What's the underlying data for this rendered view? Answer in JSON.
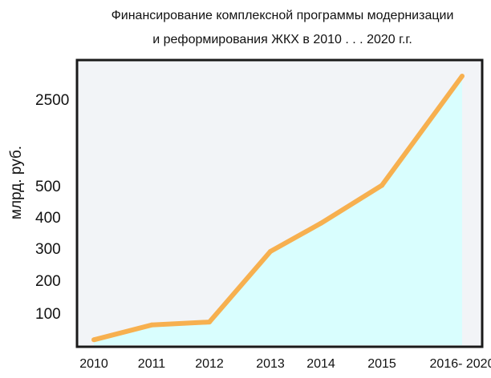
{
  "chart_data": {
    "type": "area",
    "title_line1": "Финансирование комплексной программы модернизации",
    "title_line2": "и реформирования ЖКХ в 2010 . . . 2020 г.г.",
    "xlabel": "",
    "ylabel": "млрд. руб.",
    "categories": [
      "2010",
      "2011",
      "2012",
      "2013",
      "2014",
      "2015",
      "2016- 2020"
    ],
    "series": [
      {
        "values": [
          10,
          60,
          70,
          290,
          380,
          510,
          2750
        ]
      }
    ],
    "yticks": [
      "100",
      "200",
      "300",
      "400",
      "500",
      "2500"
    ],
    "y_axis_note": "nonlinear axis: 0–500 linear, break to 2500",
    "grid": false,
    "colors": {
      "line": "#f7b04f",
      "fill": "#d9fefe",
      "plot_background": "#f2f4f7",
      "frame": "#1a1a1a"
    }
  }
}
